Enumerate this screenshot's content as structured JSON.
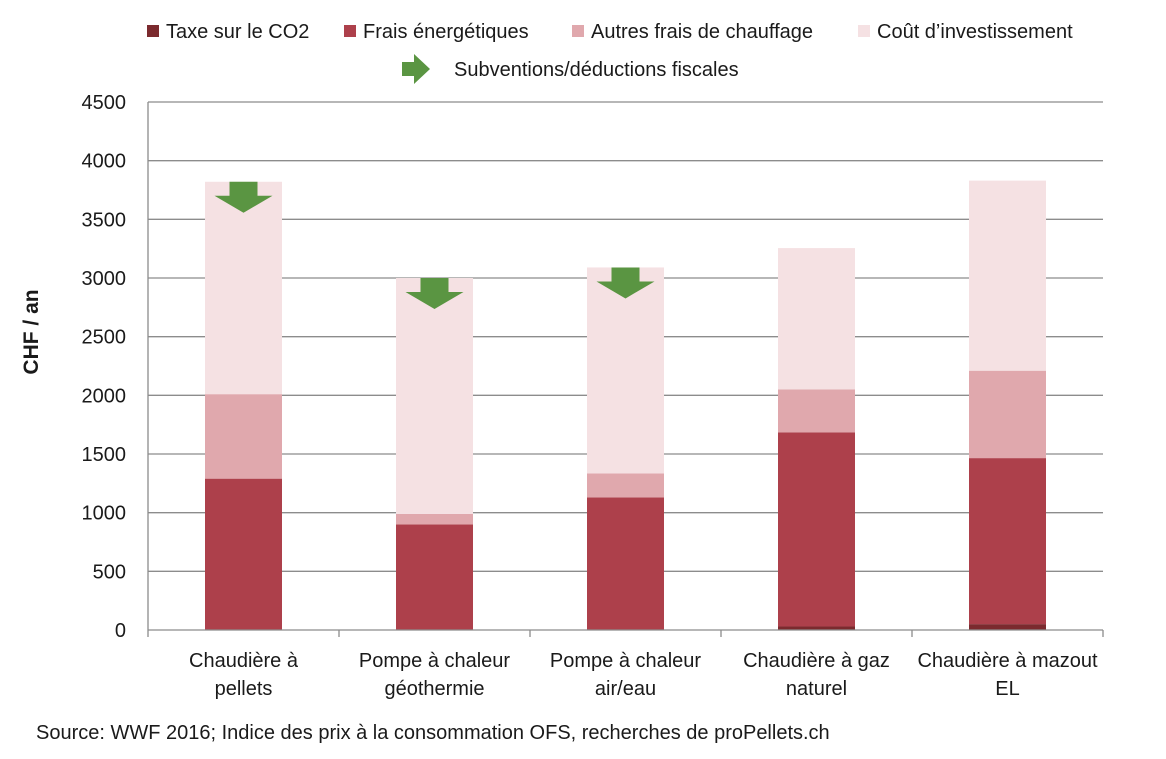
{
  "chart_data": {
    "type": "bar",
    "stacked": true,
    "title": "",
    "ylabel": "CHF / an",
    "xlabel": "",
    "ylim": [
      0,
      4500
    ],
    "yticks": [
      0,
      500,
      1000,
      1500,
      2000,
      2500,
      3000,
      3500,
      4000,
      4500
    ],
    "grid": true,
    "legend_position": "top",
    "categories": [
      [
        "Chaudière à",
        "pellets"
      ],
      [
        "Pompe à chaleur",
        "géothermie"
      ],
      [
        "Pompe à chaleur",
        "air/eau"
      ],
      [
        "Chaudière à gaz",
        "naturel"
      ],
      [
        "Chaudière à mazout",
        "EL"
      ]
    ],
    "series": [
      {
        "name": "Taxe sur le CO2",
        "color": "#7b2a2e",
        "values": [
          0,
          0,
          0,
          30,
          50
        ]
      },
      {
        "name": "Frais énergétiques",
        "color": "#ad404b",
        "values": [
          1290,
          900,
          1130,
          1655,
          1415
        ]
      },
      {
        "name": "Autres frais de chauffage",
        "color": "#e0a8ad",
        "values": [
          720,
          90,
          205,
          365,
          745
        ]
      },
      {
        "name": "Coût d’investissement",
        "color": "#f5e1e3",
        "values": [
          1810,
          2010,
          1755,
          1205,
          1620
        ]
      }
    ],
    "subsidy_marker": {
      "label": "Subventions/déductions fiscales",
      "color": "#5a9542",
      "categories_with_marker": [
        0,
        1,
        2
      ]
    }
  },
  "source": "Source: WWF 2016; Indice des prix à la consommation OFS, recherches de proPellets.ch"
}
